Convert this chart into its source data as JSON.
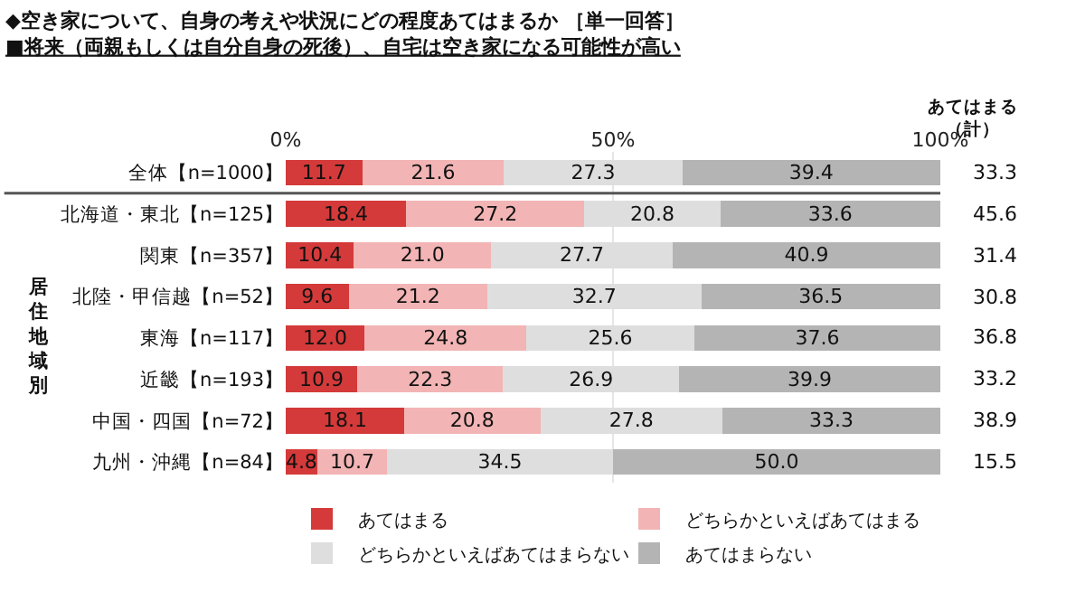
{
  "chart_data": {
    "type": "bar",
    "orientation": "horizontal",
    "stacked": true,
    "title": "◆空き家について、自身の考えや状況にどの程度あてはまるか ［単一回答］",
    "subtitle": "■将来（両親もしくは自分自身の死後）、自宅は空き家になる可能性が高い",
    "categories": [
      "全体【n=1000】",
      "北海道・東北【n=125】",
      "関東【n=357】",
      "北陸・甲信越【n=52】",
      "東海【n=117】",
      "近畿【n=193】",
      "中国・四国【n=72】",
      "九州・沖縄【n=84】"
    ],
    "series": [
      {
        "name": "あてはまる",
        "color": "#d43a3a",
        "values": [
          11.7,
          18.4,
          10.4,
          9.6,
          12.0,
          10.9,
          18.1,
          4.8
        ],
        "value_labels": [
          "11.7",
          "18.4",
          "10.4",
          "9.6",
          "12.0",
          "10.9",
          "18.1",
          "4.8"
        ]
      },
      {
        "name": "どちらかといえばあてはまる",
        "color": "#f2b4b4",
        "values": [
          21.6,
          27.2,
          21.0,
          21.2,
          24.8,
          22.3,
          20.8,
          10.7
        ],
        "value_labels": [
          "21.6",
          "27.2",
          "21.0",
          "21.2",
          "24.8",
          "22.3",
          "20.8",
          "10.7"
        ]
      },
      {
        "name": "どちらかといえばあてはまらない",
        "color": "#dedede",
        "values": [
          27.3,
          20.8,
          27.7,
          32.7,
          25.6,
          26.9,
          27.8,
          34.5
        ],
        "value_labels": [
          "27.3",
          "20.8",
          "27.7",
          "32.7",
          "25.6",
          "26.9",
          "27.8",
          "34.5"
        ]
      },
      {
        "name": "あてはまらない",
        "color": "#b4b4b4",
        "values": [
          39.4,
          33.6,
          40.9,
          36.5,
          37.6,
          39.9,
          33.3,
          50.0
        ],
        "value_labels": [
          "39.4",
          "33.6",
          "40.9",
          "36.5",
          "37.6",
          "39.9",
          "33.3",
          "50.0"
        ]
      }
    ],
    "xlim": [
      0,
      100
    ],
    "xticks": [
      {
        "value": 0,
        "label": "0%"
      },
      {
        "value": 50,
        "label": "50%"
      },
      {
        "value": 100,
        "label": "100%"
      }
    ],
    "grid": "x",
    "legend": "bottom",
    "annotations": [
      "あてはまる（計）",
      "居住地域別",
      "33.3",
      "45.6",
      "31.4",
      "30.8",
      "36.8",
      "33.2",
      "38.9",
      "15.5"
    ]
  }
}
